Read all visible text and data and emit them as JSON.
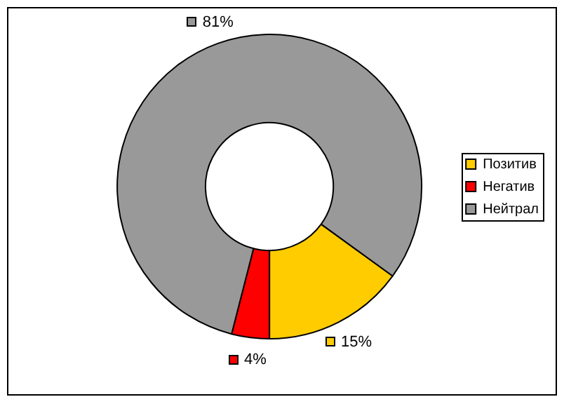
{
  "chart_data": {
    "type": "donut",
    "categories": [
      "Позитив",
      "Негатив",
      "Нейтрал"
    ],
    "values": [
      15,
      4,
      81
    ],
    "colors": [
      "#ffcc00",
      "#ff0000",
      "#999999"
    ],
    "value_labels": [
      "15%",
      "4%",
      "81%"
    ],
    "legend": "right"
  }
}
